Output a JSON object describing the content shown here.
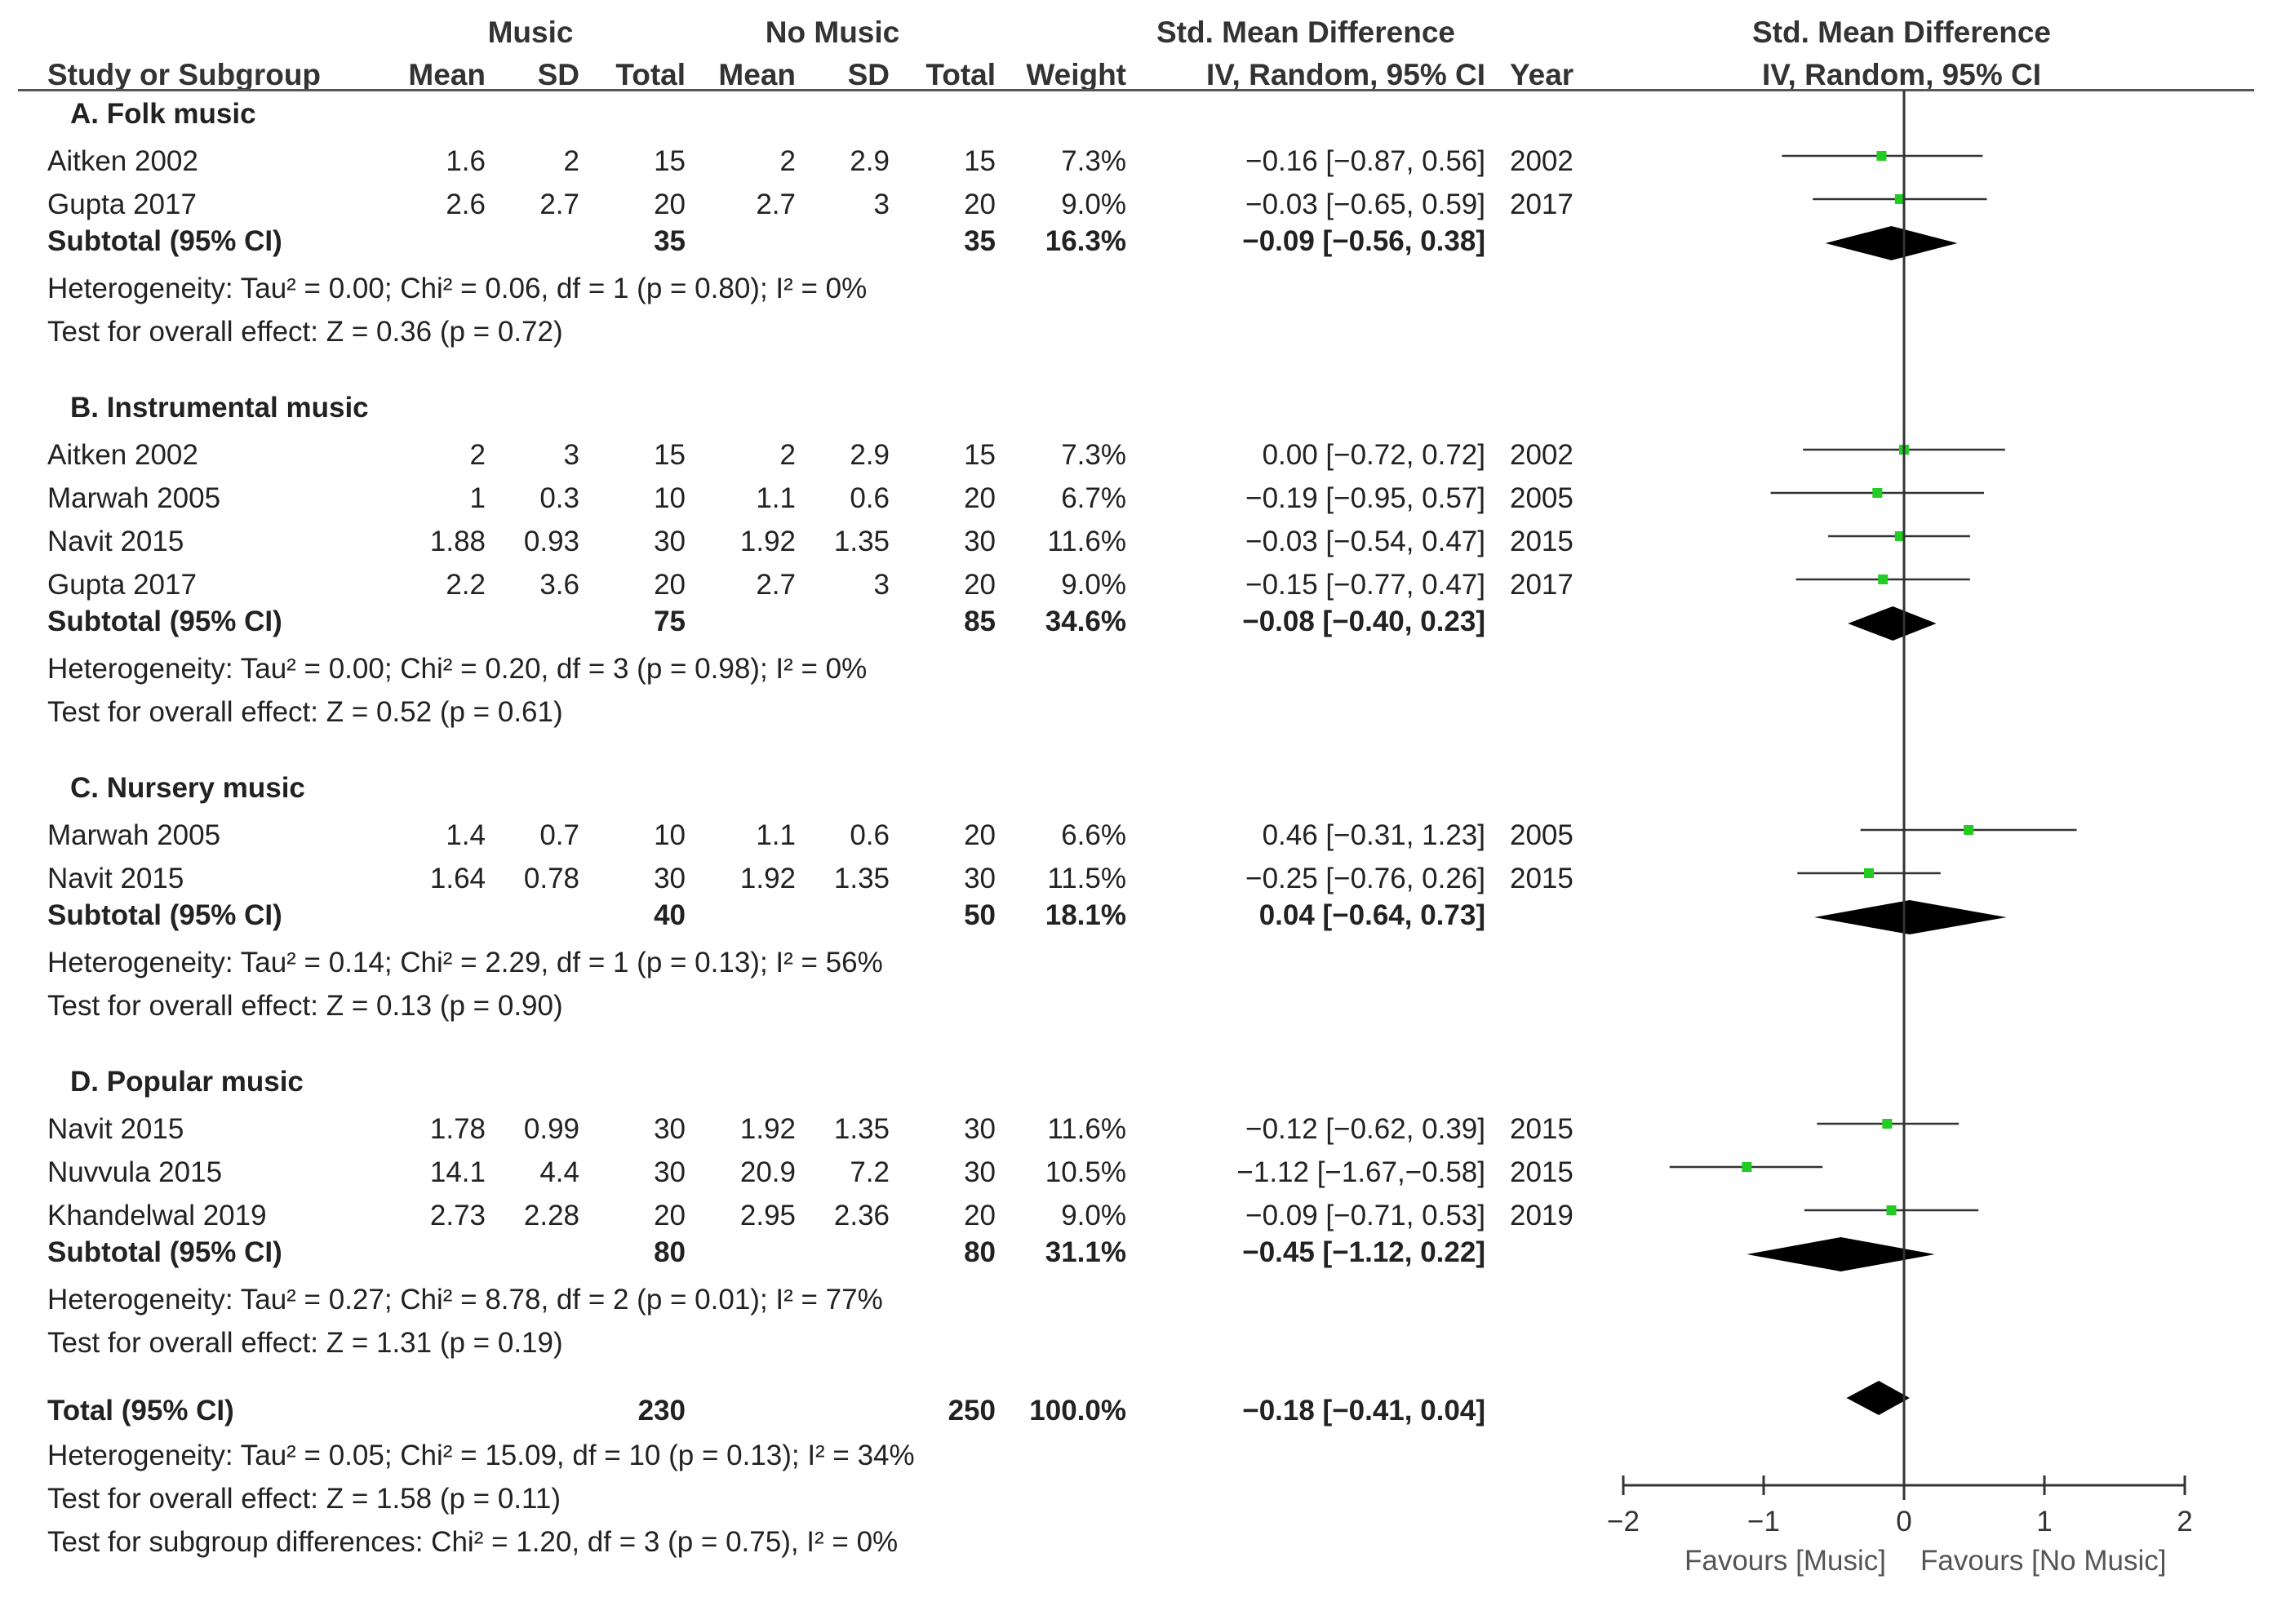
{
  "header": {
    "group_music": "Music",
    "group_nomusic": "No Music",
    "smd_table": "Std. Mean Difference",
    "smd_table_sub": "IV, Random, 95% CI",
    "smd_plot": "Std. Mean Difference",
    "smd_plot_sub": "IV, Random, 95% CI",
    "study": "Study or Subgroup",
    "mean": "Mean",
    "sd": "SD",
    "total": "Total",
    "weight": "Weight",
    "year": "Year"
  },
  "chart_data": {
    "type": "forest",
    "title": "Std. Mean Difference IV, Random, 95% CI",
    "xlim": [
      -2,
      2
    ],
    "xticks": [
      "−2",
      "−1",
      "0",
      "1",
      "2"
    ],
    "xtick_values": [
      -2,
      -1,
      0,
      1,
      2
    ],
    "favours_left": "Favours [Music]",
    "favours_right": "Favours [No Music]",
    "subgroups": [
      {
        "label": "A.  Folk music",
        "studies": [
          {
            "name": "Aitken 2002",
            "m_mean": "1.6",
            "m_sd": "2",
            "m_total": "15",
            "n_mean": "2",
            "n_sd": "2.9",
            "n_total": "15",
            "weight": "7.3%",
            "ci_text": "−0.16 [−0.87, 0.56]",
            "year": "2002",
            "est": -0.16,
            "lo": -0.87,
            "hi": 0.56
          },
          {
            "name": "Gupta 2017",
            "m_mean": "2.6",
            "m_sd": "2.7",
            "m_total": "20",
            "n_mean": "2.7",
            "n_sd": "3",
            "n_total": "20",
            "weight": "9.0%",
            "ci_text": "−0.03 [−0.65, 0.59]",
            "year": "2017",
            "est": -0.03,
            "lo": -0.65,
            "hi": 0.59
          }
        ],
        "subtotal": {
          "label": "Subtotal (95% CI)",
          "m_total": "35",
          "n_total": "35",
          "weight": "16.3%",
          "ci_text": "−0.09 [−0.56, 0.38]",
          "est": -0.09,
          "lo": -0.56,
          "hi": 0.38
        },
        "heterogeneity": "Heterogeneity: Tau² = 0.00; Chi² = 0.06, df = 1 (p = 0.80); I² = 0%",
        "overall": "Test for overall effect: Z = 0.36 (p = 0.72)"
      },
      {
        "label": "B.  Instrumental music",
        "studies": [
          {
            "name": "Aitken 2002",
            "m_mean": "2",
            "m_sd": "3",
            "m_total": "15",
            "n_mean": "2",
            "n_sd": "2.9",
            "n_total": "15",
            "weight": "7.3%",
            "ci_text": "0.00 [−0.72, 0.72]",
            "year": "2002",
            "est": 0.0,
            "lo": -0.72,
            "hi": 0.72
          },
          {
            "name": "Marwah 2005",
            "m_mean": "1",
            "m_sd": "0.3",
            "m_total": "10",
            "n_mean": "1.1",
            "n_sd": "0.6",
            "n_total": "20",
            "weight": "6.7%",
            "ci_text": "−0.19 [−0.95, 0.57]",
            "year": "2005",
            "est": -0.19,
            "lo": -0.95,
            "hi": 0.57
          },
          {
            "name": "Navit 2015",
            "m_mean": "1.88",
            "m_sd": "0.93",
            "m_total": "30",
            "n_mean": "1.92",
            "n_sd": "1.35",
            "n_total": "30",
            "weight": "11.6%",
            "ci_text": "−0.03 [−0.54, 0.47]",
            "year": "2015",
            "est": -0.03,
            "lo": -0.54,
            "hi": 0.47
          },
          {
            "name": "Gupta 2017",
            "m_mean": "2.2",
            "m_sd": "3.6",
            "m_total": "20",
            "n_mean": "2.7",
            "n_sd": "3",
            "n_total": "20",
            "weight": "9.0%",
            "ci_text": "−0.15 [−0.77, 0.47]",
            "year": "2017",
            "est": -0.15,
            "lo": -0.77,
            "hi": 0.47
          }
        ],
        "subtotal": {
          "label": "Subtotal (95% CI)",
          "m_total": "75",
          "n_total": "85",
          "weight": "34.6%",
          "ci_text": "−0.08 [−0.40, 0.23]",
          "est": -0.08,
          "lo": -0.4,
          "hi": 0.23
        },
        "heterogeneity": "Heterogeneity: Tau² = 0.00; Chi² = 0.20, df = 3 (p = 0.98); I² = 0%",
        "overall": "Test for overall effect: Z = 0.52 (p = 0.61)"
      },
      {
        "label": "C.  Nursery music",
        "studies": [
          {
            "name": "Marwah 2005",
            "m_mean": "1.4",
            "m_sd": "0.7",
            "m_total": "10",
            "n_mean": "1.1",
            "n_sd": "0.6",
            "n_total": "20",
            "weight": "6.6%",
            "ci_text": "0.46 [−0.31, 1.23]",
            "year": "2005",
            "est": 0.46,
            "lo": -0.31,
            "hi": 1.23
          },
          {
            "name": "Navit 2015",
            "m_mean": "1.64",
            "m_sd": "0.78",
            "m_total": "30",
            "n_mean": "1.92",
            "n_sd": "1.35",
            "n_total": "30",
            "weight": "11.5%",
            "ci_text": "−0.25 [−0.76, 0.26]",
            "year": "2015",
            "est": -0.25,
            "lo": -0.76,
            "hi": 0.26
          }
        ],
        "subtotal": {
          "label": "Subtotal (95% CI)",
          "m_total": "40",
          "n_total": "50",
          "weight": "18.1%",
          "ci_text": "0.04 [−0.64, 0.73]",
          "est": 0.04,
          "lo": -0.64,
          "hi": 0.73
        },
        "heterogeneity": "Heterogeneity: Tau² = 0.14; Chi² = 2.29, df = 1 (p = 0.13); I² = 56%",
        "overall": "Test for overall effect: Z = 0.13 (p = 0.90)"
      },
      {
        "label": "D.  Popular music",
        "studies": [
          {
            "name": "Navit 2015",
            "m_mean": "1.78",
            "m_sd": "0.99",
            "m_total": "30",
            "n_mean": "1.92",
            "n_sd": "1.35",
            "n_total": "30",
            "weight": "11.6%",
            "ci_text": "−0.12 [−0.62, 0.39]",
            "year": "2015",
            "est": -0.12,
            "lo": -0.62,
            "hi": 0.39
          },
          {
            "name": "Nuvvula 2015",
            "m_mean": "14.1",
            "m_sd": "4.4",
            "m_total": "30",
            "n_mean": "20.9",
            "n_sd": "7.2",
            "n_total": "30",
            "weight": "10.5%",
            "ci_text": "−1.12 [−1.67,−0.58]",
            "year": "2015",
            "est": -1.12,
            "lo": -1.67,
            "hi": -0.58
          },
          {
            "name": "Khandelwal 2019",
            "m_mean": "2.73",
            "m_sd": "2.28",
            "m_total": "20",
            "n_mean": "2.95",
            "n_sd": "2.36",
            "n_total": "20",
            "weight": "9.0%",
            "ci_text": "−0.09 [−0.71, 0.53]",
            "year": "2019",
            "est": -0.09,
            "lo": -0.71,
            "hi": 0.53
          }
        ],
        "subtotal": {
          "label": "Subtotal (95% CI)",
          "m_total": "80",
          "n_total": "80",
          "weight": "31.1%",
          "ci_text": "−0.45 [−1.12, 0.22]",
          "est": -0.45,
          "lo": -1.12,
          "hi": 0.22
        },
        "heterogeneity": "Heterogeneity: Tau² = 0.27; Chi² = 8.78, df = 2 (p = 0.01); I² = 77%",
        "overall": "Test for overall effect: Z = 1.31 (p = 0.19)"
      }
    ],
    "total": {
      "label": "Total (95% CI)",
      "m_total": "230",
      "n_total": "250",
      "weight": "100.0%",
      "ci_text": "−0.18 [−0.41, 0.04]",
      "est": -0.18,
      "lo": -0.41,
      "hi": 0.04
    },
    "total_heterogeneity": "Heterogeneity: Tau² = 0.05; Chi² = 15.09, df = 10 (p = 0.13); I² = 34%",
    "total_overall": "Test for overall effect: Z = 1.58 (p = 0.11)",
    "subgroup_diff": "Test for subgroup differences: Chi² = 1.20, df = 3 (p = 0.75), I² = 0%",
    "colors": {
      "point": "#22cc22",
      "line": "#333333",
      "diamond": "#000000",
      "axis": "#333333"
    }
  }
}
